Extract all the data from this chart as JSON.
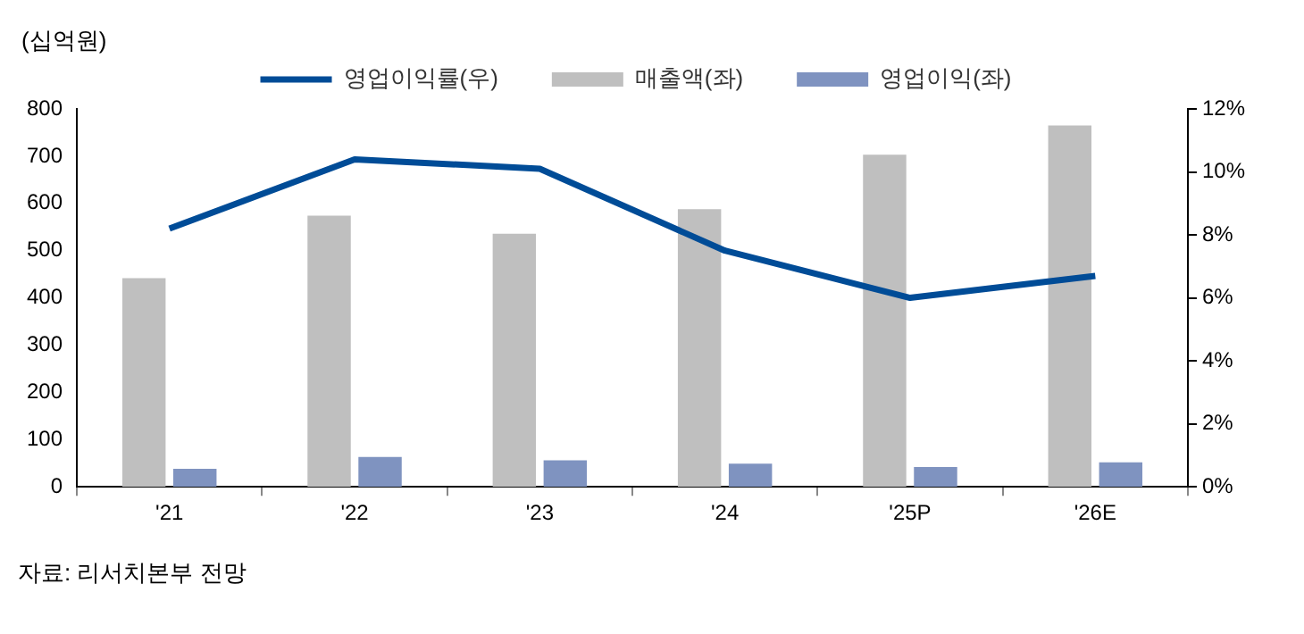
{
  "chart_data": {
    "type": "bar",
    "ylabel": "(십억원)",
    "categories": [
      "'21",
      "'22",
      "'23",
      "'24",
      "'25P",
      "'26E"
    ],
    "series": [
      {
        "name": "매출액(좌)",
        "color": "#bfbfbf",
        "values": [
          442,
          574,
          536,
          588,
          703,
          765
        ]
      },
      {
        "name": "영업이익(좌)",
        "color": "#7f93c0",
        "values": [
          38,
          63,
          56,
          49,
          42,
          52
        ]
      },
      {
        "name": "영업이익률(우)",
        "type": "line",
        "axis": "y2",
        "color": "#004c97",
        "values": [
          8.2,
          10.4,
          10.1,
          7.5,
          6.0,
          6.7
        ]
      }
    ],
    "ylim": [
      0,
      800
    ],
    "yticks": [
      0,
      100,
      200,
      300,
      400,
      500,
      600,
      700,
      800
    ],
    "y2lim": [
      0,
      12
    ],
    "y2ticks": [
      {
        "value": 0,
        "label": "0%"
      },
      {
        "value": 2,
        "label": "2%"
      },
      {
        "value": 4,
        "label": "4%"
      },
      {
        "value": 6,
        "label": "6%"
      },
      {
        "value": 8,
        "label": "8%"
      },
      {
        "value": 10,
        "label": "10%"
      },
      {
        "value": 12,
        "label": "12%"
      }
    ],
    "grid": false,
    "legend": "top",
    "marker": "none",
    "line_style": "solid",
    "annotations": [
      "자료: 리서치본부 전망"
    ]
  }
}
